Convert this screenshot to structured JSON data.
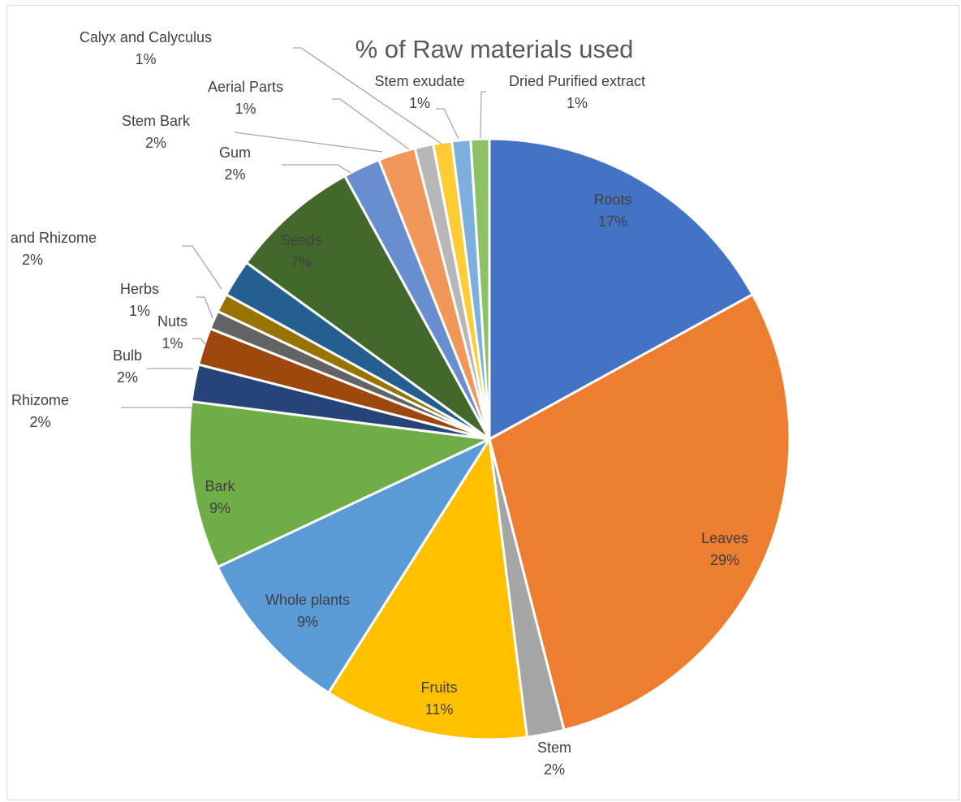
{
  "chart_data": {
    "type": "pie",
    "title": "% of Raw materials used",
    "slices": [
      {
        "label": "Roots",
        "value": 17,
        "pct": "17%",
        "color": "#4472C4"
      },
      {
        "label": "Leaves",
        "value": 29,
        "pct": "29%",
        "color": "#ED7D31"
      },
      {
        "label": "Stem",
        "value": 2,
        "pct": "2%",
        "color": "#A5A5A5"
      },
      {
        "label": "Fruits",
        "value": 11,
        "pct": "11%",
        "color": "#FFC000"
      },
      {
        "label": "Whole plants",
        "value": 9,
        "pct": "9%",
        "color": "#5B9BD5"
      },
      {
        "label": "Bark",
        "value": 9,
        "pct": "9%",
        "color": "#70AD47"
      },
      {
        "label": "Rhizome",
        "value": 2,
        "pct": "2%",
        "color": "#264478"
      },
      {
        "label": "Bulb",
        "value": 2,
        "pct": "2%",
        "color": "#9E480E"
      },
      {
        "label": "Nuts",
        "value": 1,
        "pct": "1%",
        "color": "#636363"
      },
      {
        "label": "Herbs",
        "value": 1,
        "pct": "1%",
        "color": "#997300"
      },
      {
        "label": "Roots and Rhizome",
        "value": 2,
        "pct": "2%",
        "color": "#255E91"
      },
      {
        "label": "Seeds",
        "value": 7,
        "pct": "7%",
        "color": "#43682B"
      },
      {
        "label": "Gum",
        "value": 2,
        "pct": "2%",
        "color": "#698ED0"
      },
      {
        "label": "Stem Bark",
        "value": 2,
        "pct": "2%",
        "color": "#F1975A"
      },
      {
        "label": "Aerial Parts",
        "value": 1,
        "pct": "1%",
        "color": "#B7B7B7"
      },
      {
        "label": "Calyx and Calyculus",
        "value": 1,
        "pct": "1%",
        "color": "#FFCD33"
      },
      {
        "label": "Stem exudate",
        "value": 1,
        "pct": "1%",
        "color": "#7CAFDD"
      },
      {
        "label": "Dried Purified extract",
        "value": 1,
        "pct": "1%",
        "color": "#8CC168"
      }
    ]
  }
}
